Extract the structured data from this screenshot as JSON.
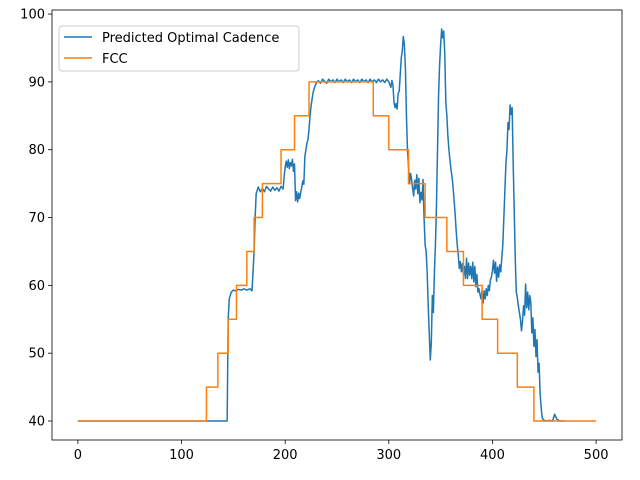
{
  "chart_data": {
    "type": "line",
    "title": "",
    "xlabel": "",
    "ylabel": "",
    "xlim": [
      -25,
      525
    ],
    "ylim": [
      37.2,
      100.6
    ],
    "xticks": [
      0,
      100,
      200,
      300,
      400,
      500
    ],
    "yticks": [
      40,
      50,
      60,
      70,
      80,
      90,
      100
    ],
    "grid": false,
    "legend_position": "top-left",
    "series": [
      {
        "name": "Predicted Optimal Cadence",
        "color": "#1f77b4",
        "points": [
          [
            0,
            40
          ],
          [
            144,
            40
          ],
          [
            145,
            55
          ],
          [
            146,
            58
          ],
          [
            148,
            59
          ],
          [
            150,
            59.3
          ],
          [
            152,
            59.2
          ],
          [
            155,
            59.4
          ],
          [
            158,
            59.3
          ],
          [
            160,
            59.5
          ],
          [
            163,
            59.3
          ],
          [
            166,
            59.5
          ],
          [
            168,
            59.2
          ],
          [
            170,
            65
          ],
          [
            171,
            70
          ],
          [
            172,
            73.5
          ],
          [
            174,
            74.5
          ],
          [
            176,
            73.8
          ],
          [
            178,
            74.3
          ],
          [
            180,
            73.8
          ],
          [
            182,
            74.6
          ],
          [
            184,
            74.2
          ],
          [
            186,
            73.9
          ],
          [
            188,
            74.5
          ],
          [
            190,
            74
          ],
          [
            192,
            74.4
          ],
          [
            194,
            73.9
          ],
          [
            196,
            74.6
          ],
          [
            198,
            74.2
          ],
          [
            199,
            76
          ],
          [
            200,
            77.5
          ],
          [
            201,
            78.3
          ],
          [
            202,
            77.4
          ],
          [
            203,
            78.5
          ],
          [
            204,
            77.2
          ],
          [
            205,
            78.1
          ],
          [
            206,
            77.6
          ],
          [
            207,
            78.6
          ],
          [
            208,
            76.8
          ],
          [
            209,
            77.9
          ],
          [
            210,
            72.5
          ],
          [
            211,
            73.8
          ],
          [
            212,
            72.3
          ],
          [
            213,
            73.6
          ],
          [
            214,
            72.8
          ],
          [
            215,
            73.7
          ],
          [
            216,
            74.5
          ],
          [
            217,
            75.4
          ],
          [
            218,
            74.9
          ],
          [
            219,
            79
          ],
          [
            220,
            80
          ],
          [
            221,
            81
          ],
          [
            222,
            81.5
          ],
          [
            223,
            83
          ],
          [
            224,
            85
          ],
          [
            225,
            86.5
          ],
          [
            226,
            87.5
          ],
          [
            227,
            88.5
          ],
          [
            228,
            89
          ],
          [
            229,
            89.5
          ],
          [
            230,
            89.8
          ],
          [
            232,
            90.2
          ],
          [
            234,
            89.8
          ],
          [
            236,
            90.4
          ],
          [
            238,
            90.1
          ],
          [
            240,
            89.8
          ],
          [
            242,
            90.4
          ],
          [
            244,
            90
          ],
          [
            246,
            90.3
          ],
          [
            248,
            89.9
          ],
          [
            250,
            90.4
          ],
          [
            252,
            90
          ],
          [
            254,
            90.3
          ],
          [
            256,
            89.9
          ],
          [
            258,
            90.4
          ],
          [
            260,
            90
          ],
          [
            262,
            90.3
          ],
          [
            264,
            89.9
          ],
          [
            266,
            90.4
          ],
          [
            268,
            90
          ],
          [
            270,
            90.3
          ],
          [
            272,
            89.9
          ],
          [
            274,
            90.4
          ],
          [
            276,
            90
          ],
          [
            278,
            90.3
          ],
          [
            280,
            89.9
          ],
          [
            282,
            90.4
          ],
          [
            284,
            90
          ],
          [
            286,
            90.3
          ],
          [
            288,
            89.9
          ],
          [
            290,
            90.4
          ],
          [
            292,
            90
          ],
          [
            294,
            90.3
          ],
          [
            296,
            89.9
          ],
          [
            298,
            90.4
          ],
          [
            300,
            90
          ],
          [
            302,
            89.2
          ],
          [
            303,
            90.2
          ],
          [
            304,
            89.5
          ],
          [
            305,
            87
          ],
          [
            306,
            86.2
          ],
          [
            307,
            86.8
          ],
          [
            308,
            86
          ],
          [
            309,
            88.3
          ],
          [
            310,
            88.6
          ],
          [
            311,
            91
          ],
          [
            312,
            93.5
          ],
          [
            313,
            94.6
          ],
          [
            314,
            96.7
          ],
          [
            315,
            95.5
          ],
          [
            316,
            92
          ],
          [
            317,
            85
          ],
          [
            318,
            80
          ],
          [
            319,
            77.5
          ],
          [
            320,
            75
          ],
          [
            321,
            76.5
          ],
          [
            322,
            75.6
          ],
          [
            323,
            74.3
          ],
          [
            324,
            73.2
          ],
          [
            325,
            75.5
          ],
          [
            326,
            74.2
          ],
          [
            327,
            76.3
          ],
          [
            328,
            73.5
          ],
          [
            329,
            75.8
          ],
          [
            330,
            72.2
          ],
          [
            331,
            73.7
          ],
          [
            332,
            72.6
          ],
          [
            333,
            75.6
          ],
          [
            334,
            70
          ],
          [
            335,
            66
          ],
          [
            336,
            65
          ],
          [
            337,
            62
          ],
          [
            338,
            57
          ],
          [
            339,
            53
          ],
          [
            340,
            49
          ],
          [
            341,
            51.5
          ],
          [
            342,
            58.5
          ],
          [
            343,
            56
          ],
          [
            344,
            62
          ],
          [
            345,
            66
          ],
          [
            346,
            72
          ],
          [
            347,
            80
          ],
          [
            348,
            88
          ],
          [
            349,
            92.5
          ],
          [
            350,
            95.5
          ],
          [
            351,
            97.8
          ],
          [
            352,
            96.5
          ],
          [
            353,
            97.5
          ],
          [
            354,
            94
          ],
          [
            355,
            87
          ],
          [
            356,
            85
          ],
          [
            357,
            82
          ],
          [
            358,
            80
          ],
          [
            359,
            78.5
          ],
          [
            360,
            77
          ],
          [
            361,
            76
          ],
          [
            362,
            74.5
          ],
          [
            363,
            72.5
          ],
          [
            364,
            70.5
          ],
          [
            365,
            68
          ],
          [
            366,
            66
          ],
          [
            367,
            64.5
          ],
          [
            368,
            62.5
          ],
          [
            369,
            63.5
          ],
          [
            370,
            62
          ],
          [
            371,
            63.2
          ],
          [
            372,
            61.5
          ],
          [
            373,
            62.8
          ],
          [
            374,
            61
          ],
          [
            375,
            64
          ],
          [
            376,
            61
          ],
          [
            377,
            63.3
          ],
          [
            378,
            61.5
          ],
          [
            379,
            62.8
          ],
          [
            380,
            61
          ],
          [
            381,
            63.4
          ],
          [
            382,
            60.5
          ],
          [
            383,
            62.8
          ],
          [
            384,
            59.8
          ],
          [
            385,
            61.6
          ],
          [
            386,
            59
          ],
          [
            387,
            59.5
          ],
          [
            388,
            58.6
          ],
          [
            389,
            58
          ],
          [
            390,
            59.3
          ],
          [
            391,
            57.4
          ],
          [
            392,
            59.2
          ],
          [
            393,
            58
          ],
          [
            394,
            59.5
          ],
          [
            395,
            58.5
          ],
          [
            396,
            60
          ],
          [
            397,
            59.2
          ],
          [
            398,
            60.8
          ],
          [
            399,
            61.2
          ],
          [
            400,
            62.2
          ],
          [
            401,
            63.7
          ],
          [
            402,
            61.8
          ],
          [
            403,
            63.4
          ],
          [
            404,
            60.6
          ],
          [
            405,
            62.7
          ],
          [
            406,
            61.2
          ],
          [
            407,
            63
          ],
          [
            408,
            62
          ],
          [
            409,
            64
          ],
          [
            410,
            66
          ],
          [
            411,
            70
          ],
          [
            412,
            74
          ],
          [
            413,
            78
          ],
          [
            414,
            80
          ],
          [
            415,
            84
          ],
          [
            416,
            83
          ],
          [
            417,
            86.6
          ],
          [
            418,
            85.2
          ],
          [
            419,
            86.2
          ],
          [
            420,
            78
          ],
          [
            421,
            71
          ],
          [
            422,
            64
          ],
          [
            423,
            59
          ],
          [
            424,
            58.2
          ],
          [
            425,
            57
          ],
          [
            426,
            56
          ],
          [
            427,
            55
          ],
          [
            428,
            53.3
          ],
          [
            429,
            54.7
          ],
          [
            430,
            57
          ],
          [
            431,
            55.6
          ],
          [
            432,
            60.2
          ],
          [
            433,
            56.7
          ],
          [
            434,
            59
          ],
          [
            435,
            56.4
          ],
          [
            436,
            58.5
          ],
          [
            437,
            57.5
          ],
          [
            438,
            53
          ],
          [
            439,
            55.2
          ],
          [
            440,
            51
          ],
          [
            441,
            53.5
          ],
          [
            442,
            49.5
          ],
          [
            443,
            52
          ],
          [
            444,
            47.2
          ],
          [
            445,
            48.5
          ],
          [
            446,
            44
          ],
          [
            447,
            42
          ],
          [
            448,
            40.5
          ],
          [
            449,
            40.2
          ],
          [
            452,
            40
          ],
          [
            455,
            40.1
          ],
          [
            458,
            40
          ],
          [
            460,
            41
          ],
          [
            462,
            40.3
          ],
          [
            465,
            40
          ],
          [
            470,
            40
          ]
        ]
      },
      {
        "name": "FCC",
        "color": "#ff7f0e",
        "points": [
          [
            0,
            40
          ],
          [
            124,
            40
          ],
          [
            124,
            45
          ],
          [
            135,
            45
          ],
          [
            135,
            50
          ],
          [
            145,
            50
          ],
          [
            145,
            55
          ],
          [
            153,
            55
          ],
          [
            153,
            60
          ],
          [
            163,
            60
          ],
          [
            163,
            65
          ],
          [
            170,
            65
          ],
          [
            170,
            70
          ],
          [
            178,
            70
          ],
          [
            178,
            75
          ],
          [
            196,
            75
          ],
          [
            196,
            80
          ],
          [
            209,
            80
          ],
          [
            209,
            85
          ],
          [
            223,
            85
          ],
          [
            223,
            90
          ],
          [
            285,
            90
          ],
          [
            285,
            85
          ],
          [
            300,
            85
          ],
          [
            300,
            80
          ],
          [
            319,
            80
          ],
          [
            319,
            75
          ],
          [
            335,
            75
          ],
          [
            335,
            70
          ],
          [
            356,
            70
          ],
          [
            356,
            65
          ],
          [
            372,
            65
          ],
          [
            372,
            60
          ],
          [
            390,
            60
          ],
          [
            390,
            55
          ],
          [
            405,
            55
          ],
          [
            405,
            50
          ],
          [
            424,
            50
          ],
          [
            424,
            45
          ],
          [
            440,
            45
          ],
          [
            440,
            40
          ],
          [
            500,
            40
          ]
        ]
      }
    ]
  }
}
